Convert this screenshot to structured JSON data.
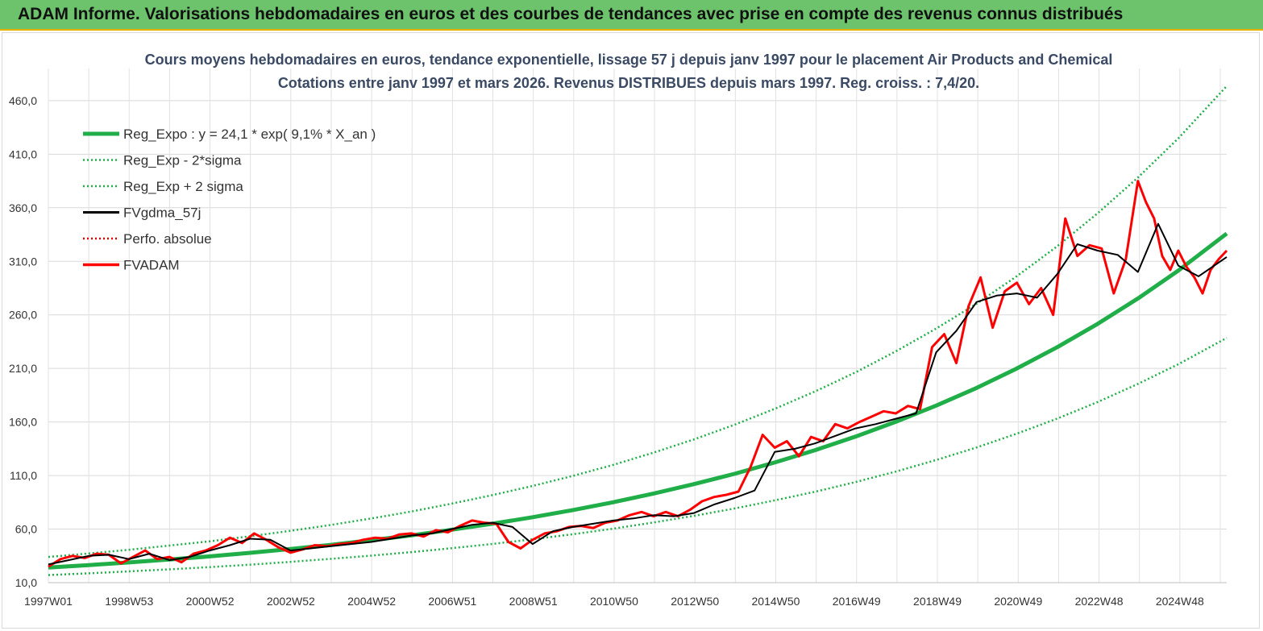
{
  "banner": {
    "title": "ADAM Informe. Valorisations hebdomadaires en euros et des courbes de tendances avec prise en compte des revenus connus distribués"
  },
  "chart_data": {
    "type": "line",
    "title": "Cours moyens hebdomadaires en euros, tendance exponentielle, lissage 57 j depuis janv 1997  pour le placement Air Products and Chemical",
    "subtitle": "Cotations entre janv 1997 et mars 2026. Revenus DISTRIBUES depuis mars 1997. Reg. croiss. : 7,4/20.",
    "ylim": [
      10,
      490
    ],
    "y_ticks": [
      "10,0",
      "60,0",
      "110,0",
      "160,0",
      "210,0",
      "260,0",
      "310,0",
      "360,0",
      "410,0",
      "460,0"
    ],
    "x_ticks": [
      "1997W01",
      "1998W53",
      "2000W52",
      "2002W52",
      "2004W52",
      "2006W51",
      "2008W51",
      "2010W50",
      "2012W50",
      "2014W50",
      "2016W49",
      "2018W49",
      "2020W49",
      "2022W48",
      "2024W48"
    ],
    "x_range": [
      1997.0,
      2026.2
    ],
    "grid": true,
    "legend_position": "top-left",
    "colors": {
      "trend": "#1fae48",
      "band": "#1fae48",
      "smooth": "#000000",
      "perf": "#e00000",
      "price": "#ff0000"
    },
    "series": [
      {
        "name": "Reg_Expo : y = 24,1 * exp( 9,1% *  X_an )",
        "style": "thick-green",
        "x": [
          1997,
          1998,
          1999,
          2000,
          2001,
          2002,
          2003,
          2004,
          2005,
          2006,
          2007,
          2008,
          2009,
          2010,
          2011,
          2012,
          2013,
          2014,
          2015,
          2016,
          2017,
          2018,
          2019,
          2020,
          2021,
          2022,
          2023,
          2024,
          2025,
          2026.2
        ],
        "y": [
          24.1,
          26.4,
          28.9,
          31.6,
          34.5,
          37.8,
          41.4,
          45.3,
          49.6,
          54.2,
          59.4,
          65.0,
          71.1,
          77.8,
          85.1,
          93.2,
          102.0,
          111.6,
          122.2,
          133.7,
          146.3,
          160.2,
          175.3,
          191.8,
          210.0,
          229.8,
          251.6,
          275.3,
          301.3,
          335.9
        ]
      },
      {
        "name": "Reg_Exp - 2*sigma",
        "style": "dotted-green",
        "x": [
          1997,
          1998,
          1999,
          2000,
          2001,
          2002,
          2003,
          2004,
          2005,
          2006,
          2007,
          2008,
          2009,
          2010,
          2011,
          2012,
          2013,
          2014,
          2015,
          2016,
          2017,
          2018,
          2019,
          2020,
          2021,
          2022,
          2023,
          2024,
          2025,
          2026.2
        ],
        "y": [
          17.1,
          18.7,
          20.5,
          22.4,
          24.5,
          26.8,
          29.4,
          32.2,
          35.2,
          38.5,
          42.2,
          46.1,
          50.5,
          55.2,
          60.4,
          66.2,
          72.4,
          79.2,
          86.8,
          94.9,
          103.9,
          113.7,
          124.5,
          136.2,
          149.1,
          163.2,
          178.6,
          195.5,
          213.9,
          238.5
        ]
      },
      {
        "name": "Reg_Exp + 2 sigma",
        "style": "dotted-green",
        "x": [
          1997,
          1998,
          1999,
          2000,
          2001,
          2002,
          2003,
          2004,
          2005,
          2006,
          2007,
          2008,
          2009,
          2010,
          2011,
          2012,
          2013,
          2014,
          2015,
          2016,
          2017,
          2018,
          2019,
          2020,
          2021,
          2022,
          2023,
          2024,
          2025,
          2026.2
        ],
        "y": [
          34.0,
          37.2,
          40.7,
          44.6,
          48.6,
          53.3,
          58.4,
          63.9,
          69.9,
          76.4,
          83.8,
          91.7,
          100.3,
          109.7,
          120.0,
          131.4,
          143.8,
          157.4,
          172.3,
          188.5,
          206.3,
          225.9,
          247.2,
          270.4,
          296.1,
          324.0,
          354.8,
          388.2,
          424.8,
          473.6
        ]
      },
      {
        "name": "FVgdma_57j",
        "style": "solid-black",
        "x": [
          1997.0,
          1997.5,
          1998.0,
          1998.5,
          1999.0,
          1999.5,
          2000.0,
          2000.5,
          2001.0,
          2001.5,
          2002.0,
          2002.5,
          2003.0,
          2003.5,
          2004.0,
          2004.5,
          2005.0,
          2005.5,
          2006.0,
          2006.5,
          2007.0,
          2007.5,
          2008.0,
          2008.5,
          2009.0,
          2009.5,
          2010.0,
          2010.5,
          2011.0,
          2011.5,
          2012.0,
          2012.5,
          2013.0,
          2013.5,
          2014.0,
          2014.5,
          2015.0,
          2015.5,
          2016.0,
          2016.5,
          2017.0,
          2017.5,
          2018.0,
          2018.5,
          2019.0,
          2019.5,
          2020.0,
          2020.5,
          2021.0,
          2021.5,
          2022.0,
          2022.5,
          2023.0,
          2023.5,
          2024.0,
          2024.5,
          2025.0,
          2025.5,
          2026.2
        ],
        "y": [
          27,
          31,
          35,
          36,
          32,
          37,
          31,
          34,
          40,
          45,
          51,
          50,
          40,
          42,
          44,
          46,
          48,
          51,
          54,
          56,
          60,
          64,
          66,
          62,
          46,
          58,
          62,
          65,
          68,
          70,
          73,
          72,
          75,
          83,
          89,
          96,
          132,
          135,
          140,
          147,
          154,
          158,
          163,
          168,
          225,
          245,
          272,
          278,
          280,
          276,
          298,
          326,
          320,
          316,
          300,
          345,
          306,
          296,
          314
        ]
      },
      {
        "name": "Perfo. absolue",
        "style": "dotted-red",
        "x": [],
        "y": []
      },
      {
        "name": "FVADAM",
        "style": "thick-red",
        "x": [
          1997.0,
          1997.3,
          1997.6,
          1997.9,
          1998.2,
          1998.5,
          1998.8,
          1999.1,
          1999.4,
          1999.7,
          2000.0,
          2000.3,
          2000.6,
          2000.9,
          2001.2,
          2001.5,
          2001.8,
          2002.1,
          2002.4,
          2002.7,
          2003.0,
          2003.3,
          2003.6,
          2003.9,
          2004.2,
          2004.5,
          2004.8,
          2005.1,
          2005.4,
          2005.7,
          2006.0,
          2006.3,
          2006.6,
          2006.9,
          2007.2,
          2007.5,
          2007.8,
          2008.1,
          2008.4,
          2008.7,
          2009.0,
          2009.3,
          2009.6,
          2009.9,
          2010.2,
          2010.5,
          2010.8,
          2011.1,
          2011.4,
          2011.7,
          2012.0,
          2012.3,
          2012.6,
          2012.9,
          2013.2,
          2013.5,
          2013.8,
          2014.1,
          2014.4,
          2014.7,
          2015.0,
          2015.3,
          2015.6,
          2015.9,
          2016.2,
          2016.5,
          2016.8,
          2017.1,
          2017.4,
          2017.7,
          2018.0,
          2018.3,
          2018.6,
          2018.9,
          2019.2,
          2019.5,
          2019.8,
          2020.1,
          2020.4,
          2020.7,
          2021.0,
          2021.3,
          2021.6,
          2021.9,
          2022.2,
          2022.5,
          2022.8,
          2023.1,
          2023.4,
          2023.7,
          2024.0,
          2024.2,
          2024.4,
          2024.6,
          2024.8,
          2025.0,
          2025.2,
          2025.4,
          2025.6,
          2025.8,
          2026.0,
          2026.2
        ],
        "y": [
          25,
          32,
          35,
          33,
          37,
          36,
          28,
          34,
          40,
          32,
          34,
          29,
          37,
          40,
          45,
          52,
          47,
          56,
          50,
          43,
          38,
          41,
          45,
          44,
          46,
          47,
          50,
          52,
          51,
          55,
          56,
          53,
          59,
          57,
          63,
          68,
          66,
          65,
          48,
          42,
          50,
          56,
          58,
          62,
          63,
          61,
          66,
          68,
          73,
          76,
          72,
          76,
          72,
          78,
          86,
          90,
          92,
          95,
          118,
          148,
          136,
          142,
          128,
          146,
          142,
          158,
          154,
          160,
          165,
          170,
          168,
          175,
          172,
          230,
          242,
          215,
          268,
          295,
          248,
          282,
          290,
          270,
          285,
          260,
          350,
          315,
          325,
          322,
          280,
          312,
          385,
          365,
          350,
          315,
          302,
          320,
          305,
          295,
          280,
          302,
          312,
          320
        ]
      }
    ]
  }
}
